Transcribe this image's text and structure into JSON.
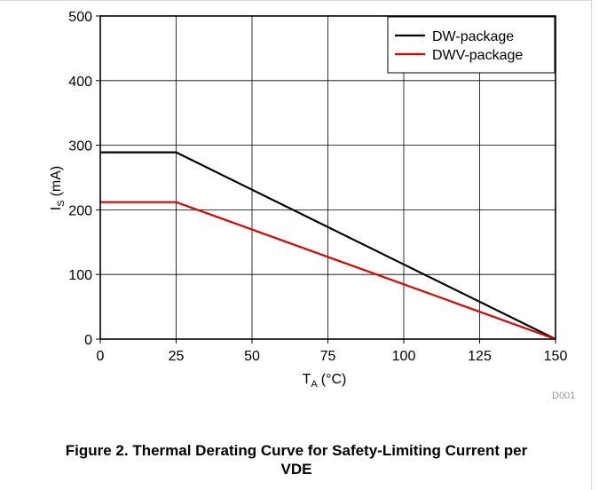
{
  "chart_data": {
    "type": "line",
    "ylabel": "I",
    "ylabel_sub": "S",
    "ylabel_unit": "(mA)",
    "xlabel": "T",
    "xlabel_sub": "A",
    "xlabel_unit": "(°C)",
    "xlim": [
      0,
      150
    ],
    "ylim": [
      0,
      500
    ],
    "xticks": [
      0,
      25,
      50,
      75,
      100,
      125,
      150
    ],
    "yticks": [
      0,
      100,
      200,
      300,
      400,
      500
    ],
    "grid": true,
    "legend_position": "top-right",
    "series": [
      {
        "name": "DW-package",
        "color": "#000000",
        "x": [
          0,
          25,
          150
        ],
        "y": [
          289,
          289,
          0
        ]
      },
      {
        "name": "DWV-package",
        "color": "#e00000",
        "x": [
          0,
          25,
          150
        ],
        "y": [
          212,
          212,
          0
        ]
      }
    ]
  },
  "figure_id": "D001",
  "caption": "Figure 2. Thermal Derating Curve for Safety-Limiting Current per VDE"
}
